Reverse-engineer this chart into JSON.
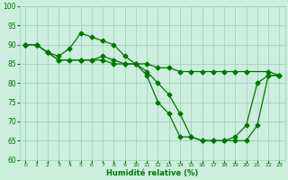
{
  "xlabel": "Humidité relative (%)",
  "background_color": "#cceedd",
  "grid_color": "#99ccbb",
  "line_color": "#007700",
  "xlim": [
    -0.5,
    23.5
  ],
  "ylim": [
    60,
    100
  ],
  "yticks": [
    60,
    65,
    70,
    75,
    80,
    85,
    90,
    95,
    100
  ],
  "xticks": [
    0,
    1,
    2,
    3,
    4,
    5,
    6,
    7,
    8,
    9,
    10,
    11,
    12,
    13,
    14,
    15,
    16,
    17,
    18,
    19,
    20,
    21,
    22,
    23
  ],
  "line1": {
    "x": [
      0,
      1,
      2,
      3,
      4,
      5,
      6,
      7,
      8,
      9,
      10,
      11,
      12,
      13,
      14,
      15,
      16,
      17,
      18,
      19,
      20,
      21,
      22,
      23
    ],
    "y": [
      90,
      90,
      88,
      87,
      89,
      93,
      92,
      91,
      90,
      87,
      85,
      82,
      75,
      72,
      66,
      66,
      65,
      65,
      65,
      66,
      69,
      80,
      82,
      82
    ]
  },
  "line2": {
    "x": [
      0,
      1,
      2,
      3,
      4,
      5,
      6,
      7,
      8,
      9,
      10,
      11,
      12,
      13,
      14,
      15,
      16,
      17,
      18,
      19,
      20,
      22,
      23
    ],
    "y": [
      90,
      90,
      88,
      86,
      86,
      86,
      86,
      86,
      85,
      85,
      85,
      85,
      84,
      84,
      83,
      83,
      83,
      83,
      83,
      83,
      83,
      83,
      82
    ]
  },
  "line3": {
    "x": [
      0,
      1,
      2,
      3,
      5,
      6,
      7,
      8,
      9,
      10,
      11,
      12,
      13,
      14,
      15,
      16,
      17,
      18,
      19,
      20,
      21,
      22,
      23
    ],
    "y": [
      90,
      90,
      88,
      86,
      86,
      86,
      87,
      86,
      85,
      85,
      83,
      80,
      77,
      72,
      66,
      65,
      65,
      65,
      65,
      65,
      69,
      82,
      82
    ]
  }
}
